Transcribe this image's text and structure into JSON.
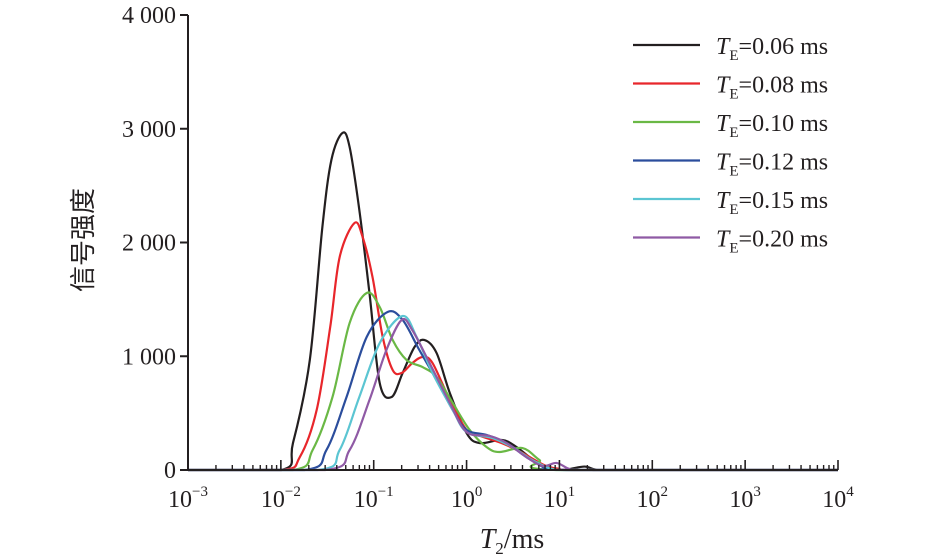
{
  "chart_data": {
    "type": "line",
    "title": "",
    "xlabel": {
      "main": "T",
      "sub": "2",
      "rest": "/ms"
    },
    "ylabel": "信号强度",
    "xscale": "log",
    "xlim": [
      0.001,
      10000
    ],
    "ylim": [
      0,
      4000
    ],
    "x_ticks": [
      {
        "base": "10",
        "exp": "−3",
        "value": 0.001
      },
      {
        "base": "10",
        "exp": "−2",
        "value": 0.01
      },
      {
        "base": "10",
        "exp": "−1",
        "value": 0.1
      },
      {
        "base": "10",
        "exp": "0",
        "value": 1
      },
      {
        "base": "10",
        "exp": "1",
        "value": 10
      },
      {
        "base": "10",
        "exp": "2",
        "value": 100
      },
      {
        "base": "10",
        "exp": "3",
        "value": 1000
      },
      {
        "base": "10",
        "exp": "4",
        "value": 10000
      }
    ],
    "y_ticks": [
      {
        "label": "0",
        "value": 0
      },
      {
        "label": "1 000",
        "value": 1000
      },
      {
        "label": "2 000",
        "value": 2000
      },
      {
        "label": "3 000",
        "value": 3000
      },
      {
        "label": "4 000",
        "value": 4000
      }
    ],
    "grid": false,
    "legend_position": "top-right",
    "series": [
      {
        "name_main": "T",
        "name_sub": "E",
        "name_rest": "=0.06 ms",
        "color": "#231f20",
        "points": [
          [
            0.001,
            0
          ],
          [
            0.0101,
            0
          ],
          [
            0.0135,
            237
          ],
          [
            0.0205,
            967
          ],
          [
            0.028,
            2136
          ],
          [
            0.035,
            2725
          ],
          [
            0.046,
            2963
          ],
          [
            0.055,
            2840
          ],
          [
            0.07,
            2286
          ],
          [
            0.09,
            1556
          ],
          [
            0.116,
            765
          ],
          [
            0.156,
            642
          ],
          [
            0.205,
            853
          ],
          [
            0.275,
            1081
          ],
          [
            0.35,
            1143
          ],
          [
            0.475,
            1029
          ],
          [
            0.66,
            677
          ],
          [
            1.0,
            325
          ],
          [
            1.38,
            237
          ],
          [
            2.4,
            264
          ],
          [
            3.45,
            202
          ],
          [
            5.7,
            62
          ],
          [
            7.8,
            5
          ],
          [
            12,
            5
          ],
          [
            18.6,
            30
          ],
          [
            25,
            2
          ],
          [
            40,
            0
          ],
          [
            10000,
            0
          ]
        ]
      },
      {
        "name_main": "T",
        "name_sub": "E",
        "name_rest": "=0.08 ms",
        "color": "#e8262b",
        "points": [
          [
            0.001,
            0
          ],
          [
            0.0101,
            0
          ],
          [
            0.016,
            114
          ],
          [
            0.0243,
            527
          ],
          [
            0.034,
            1257
          ],
          [
            0.043,
            1873
          ],
          [
            0.062,
            2171
          ],
          [
            0.076,
            2048
          ],
          [
            0.097,
            1697
          ],
          [
            0.125,
            1169
          ],
          [
            0.16,
            879
          ],
          [
            0.2,
            853
          ],
          [
            0.26,
            940
          ],
          [
            0.336,
            993
          ],
          [
            0.43,
            940
          ],
          [
            0.66,
            615
          ],
          [
            1.0,
            352
          ],
          [
            1.4,
            300
          ],
          [
            2.5,
            230
          ],
          [
            4.0,
            150
          ],
          [
            7.0,
            40
          ],
          [
            10,
            10
          ],
          [
            15,
            0
          ],
          [
            10000,
            0
          ]
        ]
      },
      {
        "name_main": "T",
        "name_sub": "E",
        "name_rest": "=0.10 ms",
        "color": "#6ab845",
        "points": [
          [
            0.001,
            0
          ],
          [
            0.0135,
            0
          ],
          [
            0.022,
            176
          ],
          [
            0.036,
            642
          ],
          [
            0.055,
            1292
          ],
          [
            0.084,
            1556
          ],
          [
            0.116,
            1433
          ],
          [
            0.16,
            1143
          ],
          [
            0.226,
            967
          ],
          [
            0.336,
            905
          ],
          [
            0.475,
            818
          ],
          [
            0.71,
            589
          ],
          [
            1.08,
            352
          ],
          [
            1.64,
            202
          ],
          [
            2.26,
            158
          ],
          [
            4.0,
            193
          ],
          [
            6.1,
            88
          ],
          [
            9.3,
            0
          ],
          [
            10000,
            0
          ]
        ]
      },
      {
        "name_main": "T",
        "name_sub": "E",
        "name_rest": "=0.12 ms",
        "color": "#2b4d9c",
        "points": [
          [
            0.001,
            0
          ],
          [
            0.018,
            0
          ],
          [
            0.031,
            176
          ],
          [
            0.051,
            642
          ],
          [
            0.084,
            1169
          ],
          [
            0.141,
            1389
          ],
          [
            0.205,
            1319
          ],
          [
            0.31,
            1055
          ],
          [
            0.475,
            791
          ],
          [
            0.71,
            527
          ],
          [
            1.0,
            352
          ],
          [
            1.64,
            308
          ],
          [
            2.7,
            237
          ],
          [
            4.4,
            114
          ],
          [
            7.2,
            18
          ],
          [
            12,
            0
          ],
          [
            10000,
            0
          ]
        ]
      },
      {
        "name_main": "T",
        "name_sub": "E",
        "name_rest": "=0.15 ms",
        "color": "#5bc5d2",
        "points": [
          [
            0.001,
            0
          ],
          [
            0.025,
            0
          ],
          [
            0.043,
            176
          ],
          [
            0.07,
            642
          ],
          [
            0.116,
            1116
          ],
          [
            0.205,
            1354
          ],
          [
            0.29,
            1169
          ],
          [
            0.43,
            853
          ],
          [
            0.71,
            527
          ],
          [
            1.0,
            334
          ],
          [
            1.9,
            281
          ],
          [
            3.1,
            202
          ],
          [
            5.1,
            88
          ],
          [
            8.4,
            9
          ],
          [
            14,
            0
          ],
          [
            10000,
            0
          ]
        ]
      },
      {
        "name_main": "T",
        "name_sub": "E",
        "name_rest": "=0.20 ms",
        "color": "#8f5aa5",
        "points": [
          [
            0.001,
            0
          ],
          [
            0.03,
            0
          ],
          [
            0.055,
            176
          ],
          [
            0.09,
            615
          ],
          [
            0.137,
            1055
          ],
          [
            0.2,
            1319
          ],
          [
            0.26,
            1231
          ],
          [
            0.4,
            940
          ],
          [
            0.66,
            589
          ],
          [
            1.0,
            334
          ],
          [
            1.77,
            299
          ],
          [
            2.7,
            237
          ],
          [
            4.4,
            114
          ],
          [
            6.6,
            35
          ],
          [
            9.3,
            62
          ],
          [
            12.8,
            9
          ],
          [
            18,
            0
          ],
          [
            10000,
            0
          ]
        ]
      }
    ]
  }
}
